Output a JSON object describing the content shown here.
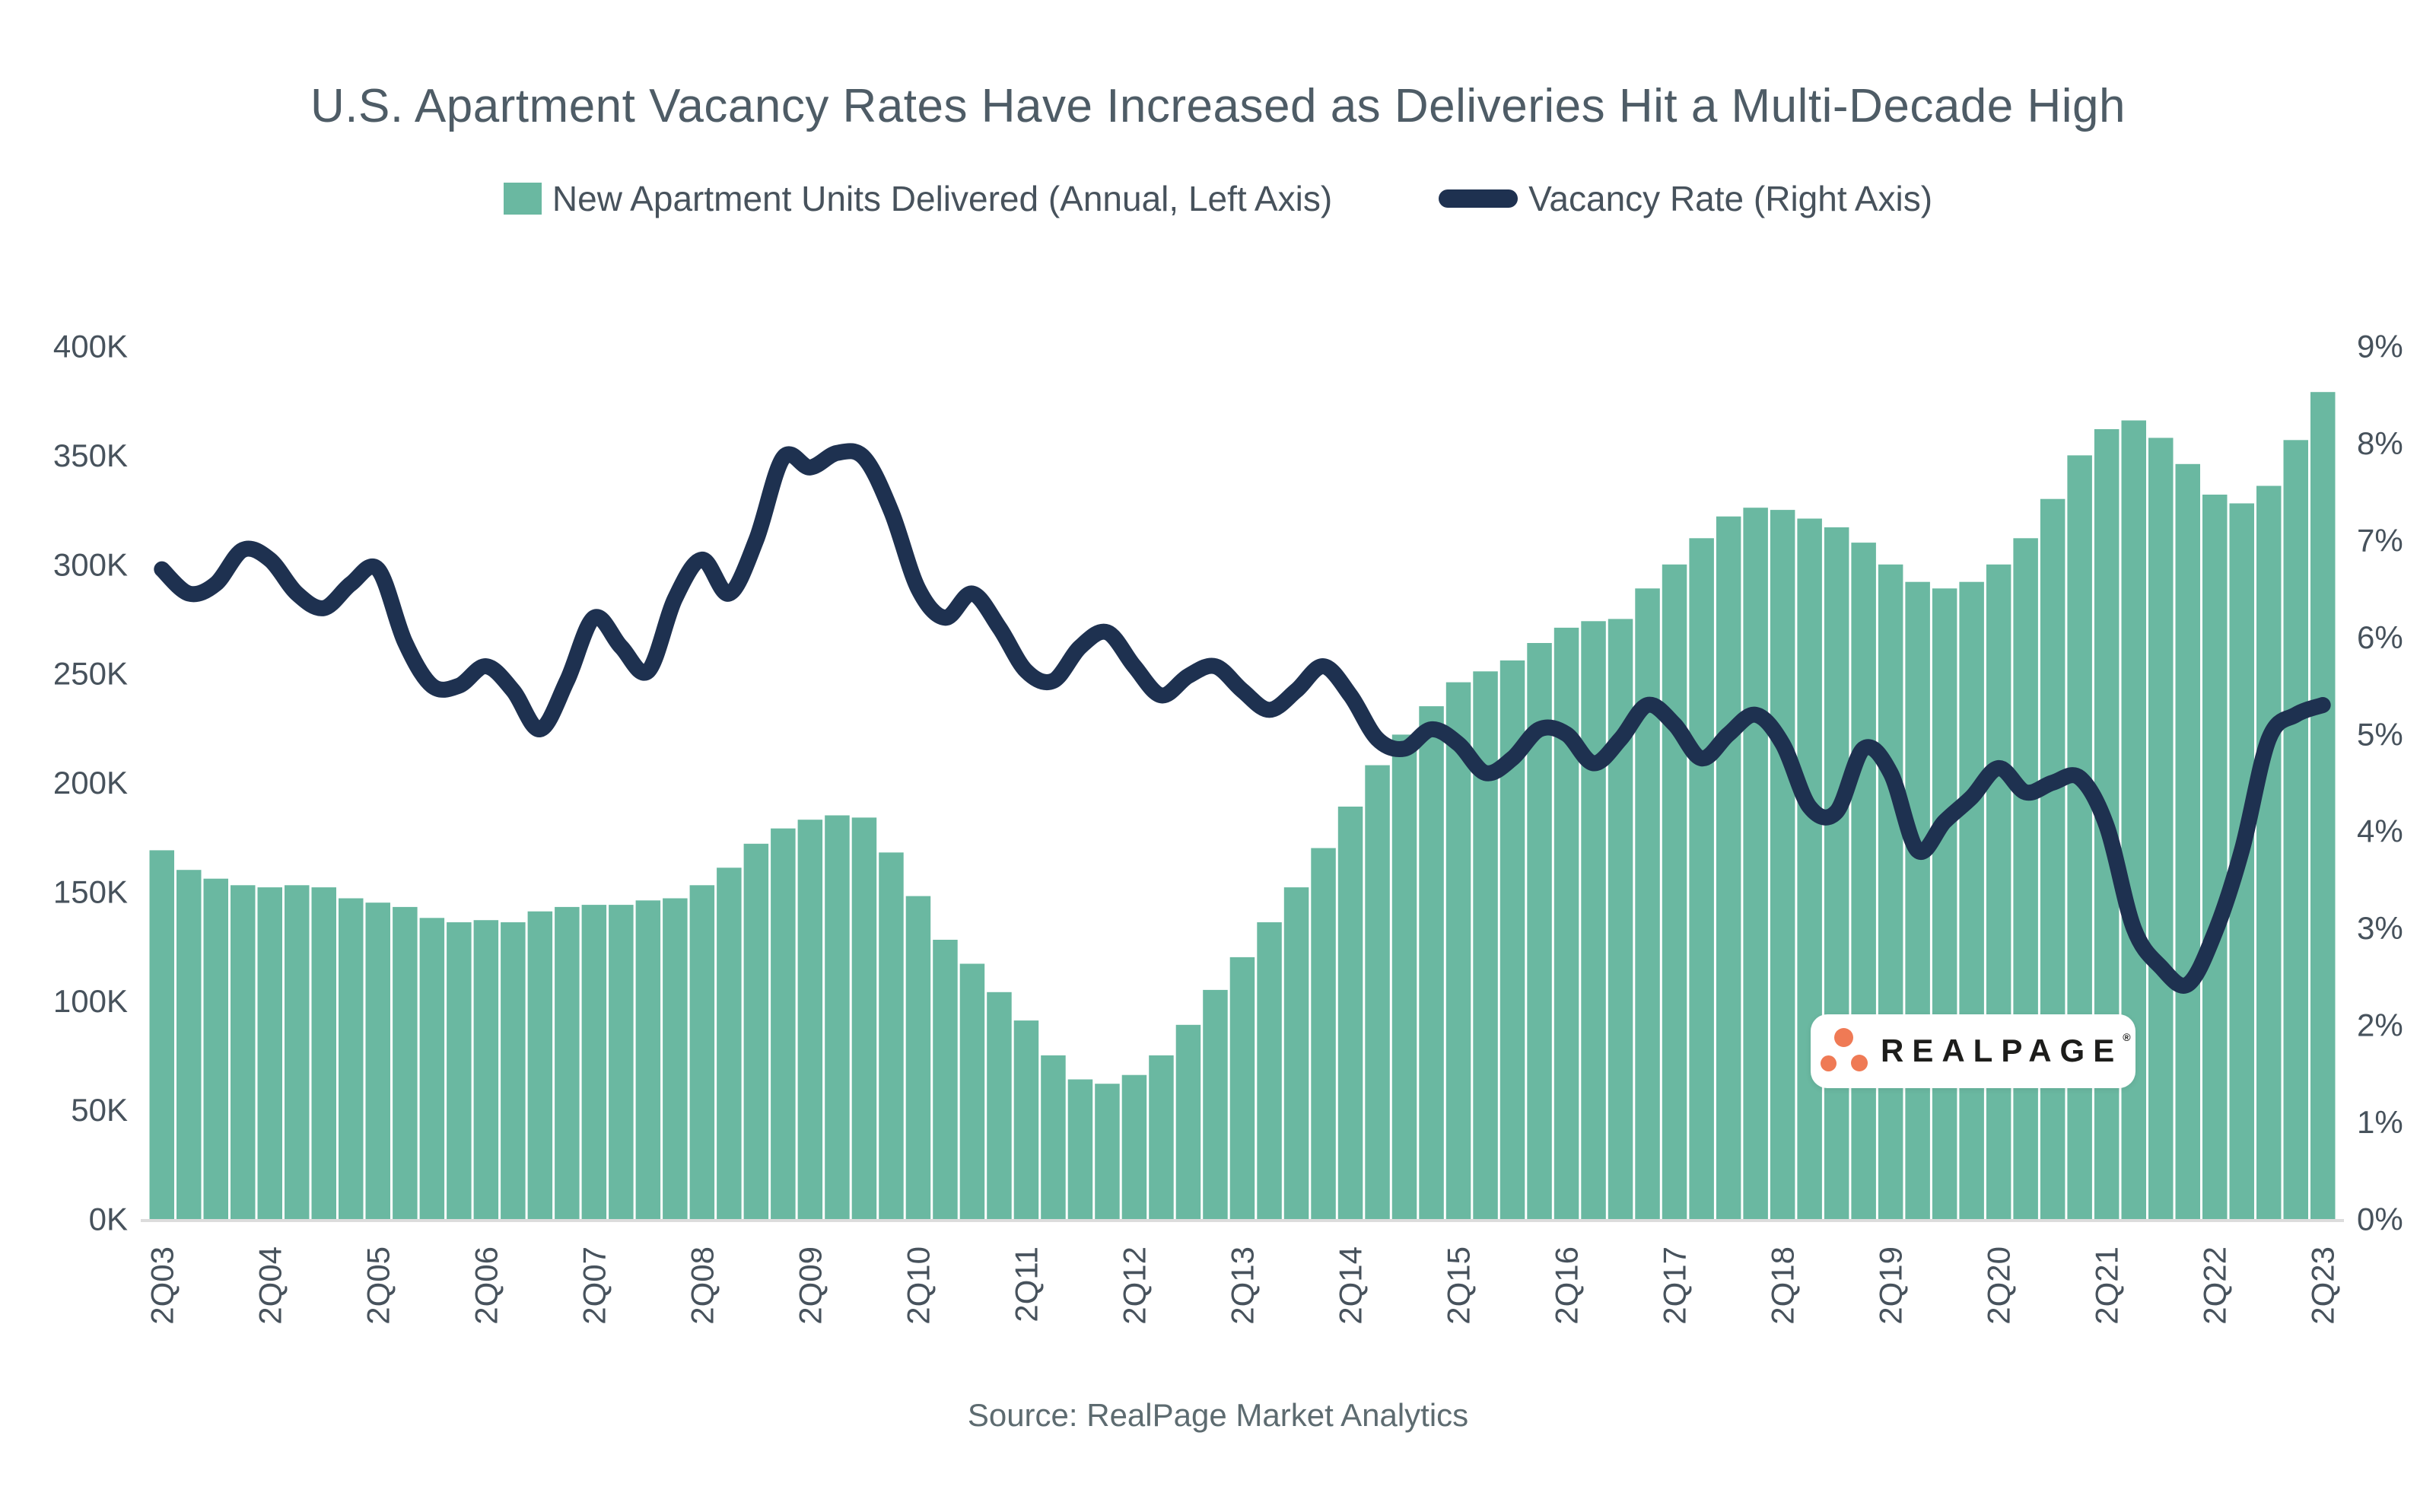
{
  "title": {
    "text": "U.S. Apartment Vacancy Rates Have Increased as Deliveries Hit a Multi-Decade High"
  },
  "legend": {
    "items": [
      {
        "label": "New Apartment Units Delivered (Annual, Left Axis)",
        "swatch": "bar-swatch",
        "color": "#6ab8a1"
      },
      {
        "label": "Vacancy Rate (Right Axis)",
        "swatch": "line-swatch",
        "color": "#1e3150"
      }
    ]
  },
  "source": {
    "text": "Source: RealPage Market Analytics"
  },
  "logo": {
    "text": "REALPAGE",
    "registered": "®",
    "dot_color": "#ef7a55",
    "box_color": "#ffffff"
  },
  "chart_data": {
    "type": "combo",
    "grid": false,
    "legend_position": "top",
    "background": "#ffffff",
    "plot": {
      "x0": 195,
      "x1": 3071,
      "y_top": 455,
      "y_bottom": 1602,
      "bar_gap": 3,
      "line_width": 21,
      "baseline_color": "#dcdcdc",
      "label_color": "#47525c",
      "tick_font_size": 42
    },
    "categories": [
      "2Q03",
      "3Q03",
      "4Q03",
      "1Q04",
      "2Q04",
      "3Q04",
      "4Q04",
      "1Q05",
      "2Q05",
      "3Q05",
      "4Q05",
      "1Q06",
      "2Q06",
      "3Q06",
      "4Q06",
      "1Q07",
      "2Q07",
      "3Q07",
      "4Q07",
      "1Q08",
      "2Q08",
      "3Q08",
      "4Q08",
      "1Q09",
      "2Q09",
      "3Q09",
      "4Q09",
      "1Q10",
      "2Q10",
      "3Q10",
      "4Q10",
      "1Q11",
      "2Q11",
      "3Q11",
      "4Q11",
      "1Q12",
      "2Q12",
      "3Q12",
      "4Q12",
      "1Q13",
      "2Q13",
      "3Q13",
      "4Q13",
      "1Q14",
      "2Q14",
      "3Q14",
      "4Q14",
      "1Q15",
      "2Q15",
      "3Q15",
      "4Q15",
      "1Q16",
      "2Q16",
      "3Q16",
      "4Q16",
      "1Q17",
      "2Q17",
      "3Q17",
      "4Q17",
      "1Q18",
      "2Q18",
      "3Q18",
      "4Q18",
      "1Q19",
      "2Q19",
      "3Q19",
      "4Q19",
      "1Q20",
      "2Q20",
      "3Q20",
      "4Q20",
      "1Q21",
      "2Q21",
      "3Q21",
      "4Q21",
      "1Q22",
      "2Q22",
      "3Q22",
      "4Q22",
      "1Q23",
      "2Q23"
    ],
    "x_tick_indices": [
      0,
      4,
      8,
      12,
      16,
      20,
      24,
      28,
      32,
      36,
      40,
      44,
      48,
      52,
      56,
      60,
      64,
      68,
      72,
      76,
      80
    ],
    "left_axis": {
      "min": 0,
      "max": 400,
      "unit": "thousands of units",
      "tick_labels": [
        "400K",
        "350K",
        "300K",
        "250K",
        "200K",
        "150K",
        "100K",
        "50K",
        "0K"
      ]
    },
    "right_axis": {
      "min": 0,
      "max": 9,
      "unit": "%",
      "tick_labels": [
        "9%",
        "8%",
        "7%",
        "6%",
        "5%",
        "4%",
        "3%",
        "2%",
        "1%",
        "0%"
      ]
    },
    "series": [
      {
        "name": "New Apartment Units Delivered (Annual, Left Axis)",
        "type": "bar",
        "axis": "left",
        "color": "#6ab8a1",
        "values": [
          169,
          160,
          156,
          153,
          152,
          153,
          152,
          147,
          145,
          143,
          138,
          136,
          137,
          136,
          141,
          143,
          144,
          144,
          146,
          147,
          153,
          161,
          172,
          179,
          183,
          185,
          184,
          168,
          148,
          128,
          117,
          104,
          91,
          75,
          64,
          62,
          66,
          75,
          89,
          105,
          120,
          136,
          152,
          170,
          189,
          208,
          222,
          235,
          246,
          251,
          256,
          264,
          271,
          274,
          275,
          289,
          300,
          312,
          322,
          326,
          325,
          321,
          317,
          310,
          300,
          292,
          289,
          292,
          300,
          312,
          330,
          350,
          362,
          366,
          358,
          346,
          332,
          328,
          336,
          357,
          379
        ]
      },
      {
        "name": "Vacancy Rate (Right Axis)",
        "type": "line",
        "axis": "right",
        "color": "#1e3150",
        "values": [
          6.7,
          6.45,
          6.55,
          6.9,
          6.8,
          6.45,
          6.3,
          6.55,
          6.7,
          5.95,
          5.5,
          5.5,
          5.7,
          5.45,
          5.05,
          5.55,
          6.2,
          5.9,
          5.65,
          6.4,
          6.8,
          6.45,
          7.0,
          7.85,
          7.75,
          7.9,
          7.85,
          7.3,
          6.5,
          6.2,
          6.45,
          6.1,
          5.65,
          5.55,
          5.9,
          6.05,
          5.7,
          5.4,
          5.6,
          5.7,
          5.45,
          5.25,
          5.45,
          5.7,
          5.4,
          4.95,
          4.85,
          5.05,
          4.9,
          4.6,
          4.75,
          5.05,
          5.0,
          4.7,
          4.95,
          5.3,
          5.1,
          4.75,
          5.0,
          5.2,
          4.9,
          4.25,
          4.2,
          4.85,
          4.6,
          3.8,
          4.1,
          4.35,
          4.65,
          4.4,
          4.5,
          4.55,
          4.05,
          3.0,
          2.6,
          2.42,
          2.95,
          3.8,
          4.95,
          5.2,
          5.3
        ]
      }
    ]
  }
}
